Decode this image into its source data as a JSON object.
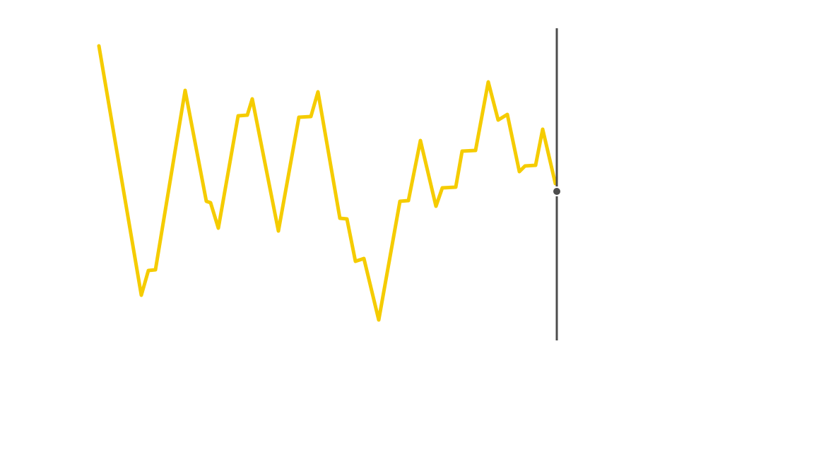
{
  "chart_data": {
    "type": "line",
    "x": [
      0,
      60,
      70,
      80,
      122,
      152,
      158,
      169,
      197,
      210,
      217,
      254,
      283,
      300,
      310,
      341,
      351,
      363,
      375,
      396,
      426,
      438,
      455,
      477,
      486,
      505,
      514,
      533,
      551,
      565,
      578,
      595,
      603,
      618,
      628,
      646
    ],
    "values": [
      417,
      64,
      99,
      100,
      354,
      197,
      195,
      159,
      318,
      319,
      342,
      155,
      316,
      317,
      352,
      173,
      172,
      112,
      116,
      29,
      197,
      198,
      283,
      190,
      216,
      217,
      268,
      269,
      366,
      312,
      320,
      239,
      247,
      248,
      299,
      222
    ],
    "color": "#f5cc00",
    "xlim": [
      0,
      648
    ],
    "ylim": [
      0,
      442
    ],
    "cursor": {
      "x": 648,
      "y": 211,
      "color": "#4d4d4d"
    }
  }
}
